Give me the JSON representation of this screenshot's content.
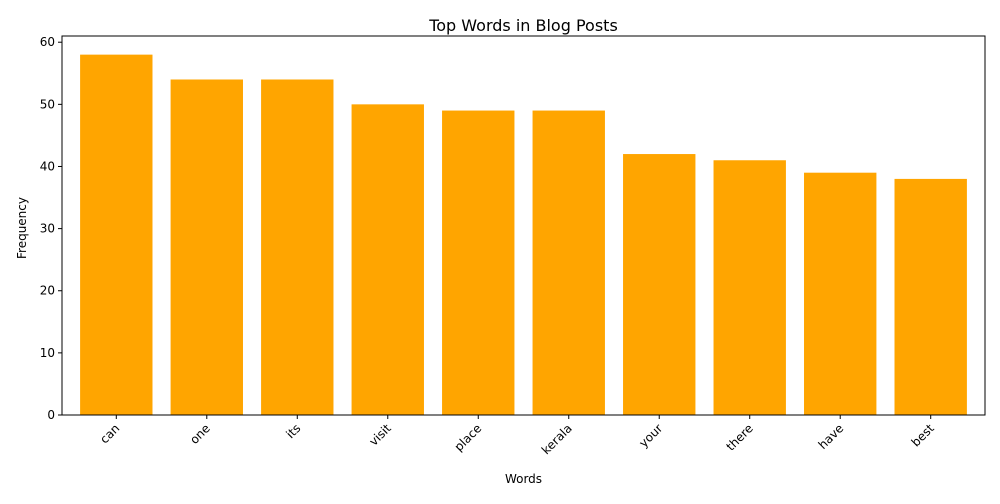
{
  "chart_data": {
    "type": "bar",
    "title": "Top Words in Blog Posts",
    "xlabel": "Words",
    "ylabel": "Frequency",
    "categories": [
      "can",
      "one",
      "its",
      "visit",
      "place",
      "kerala",
      "your",
      "there",
      "have",
      "best"
    ],
    "values": [
      58,
      54,
      54,
      50,
      49,
      49,
      42,
      41,
      39,
      38
    ],
    "ylim": [
      0,
      61
    ],
    "yticks": [
      0,
      10,
      20,
      30,
      40,
      50,
      60
    ],
    "bar_color": "#ffa500",
    "grid": false,
    "legend": "none"
  }
}
